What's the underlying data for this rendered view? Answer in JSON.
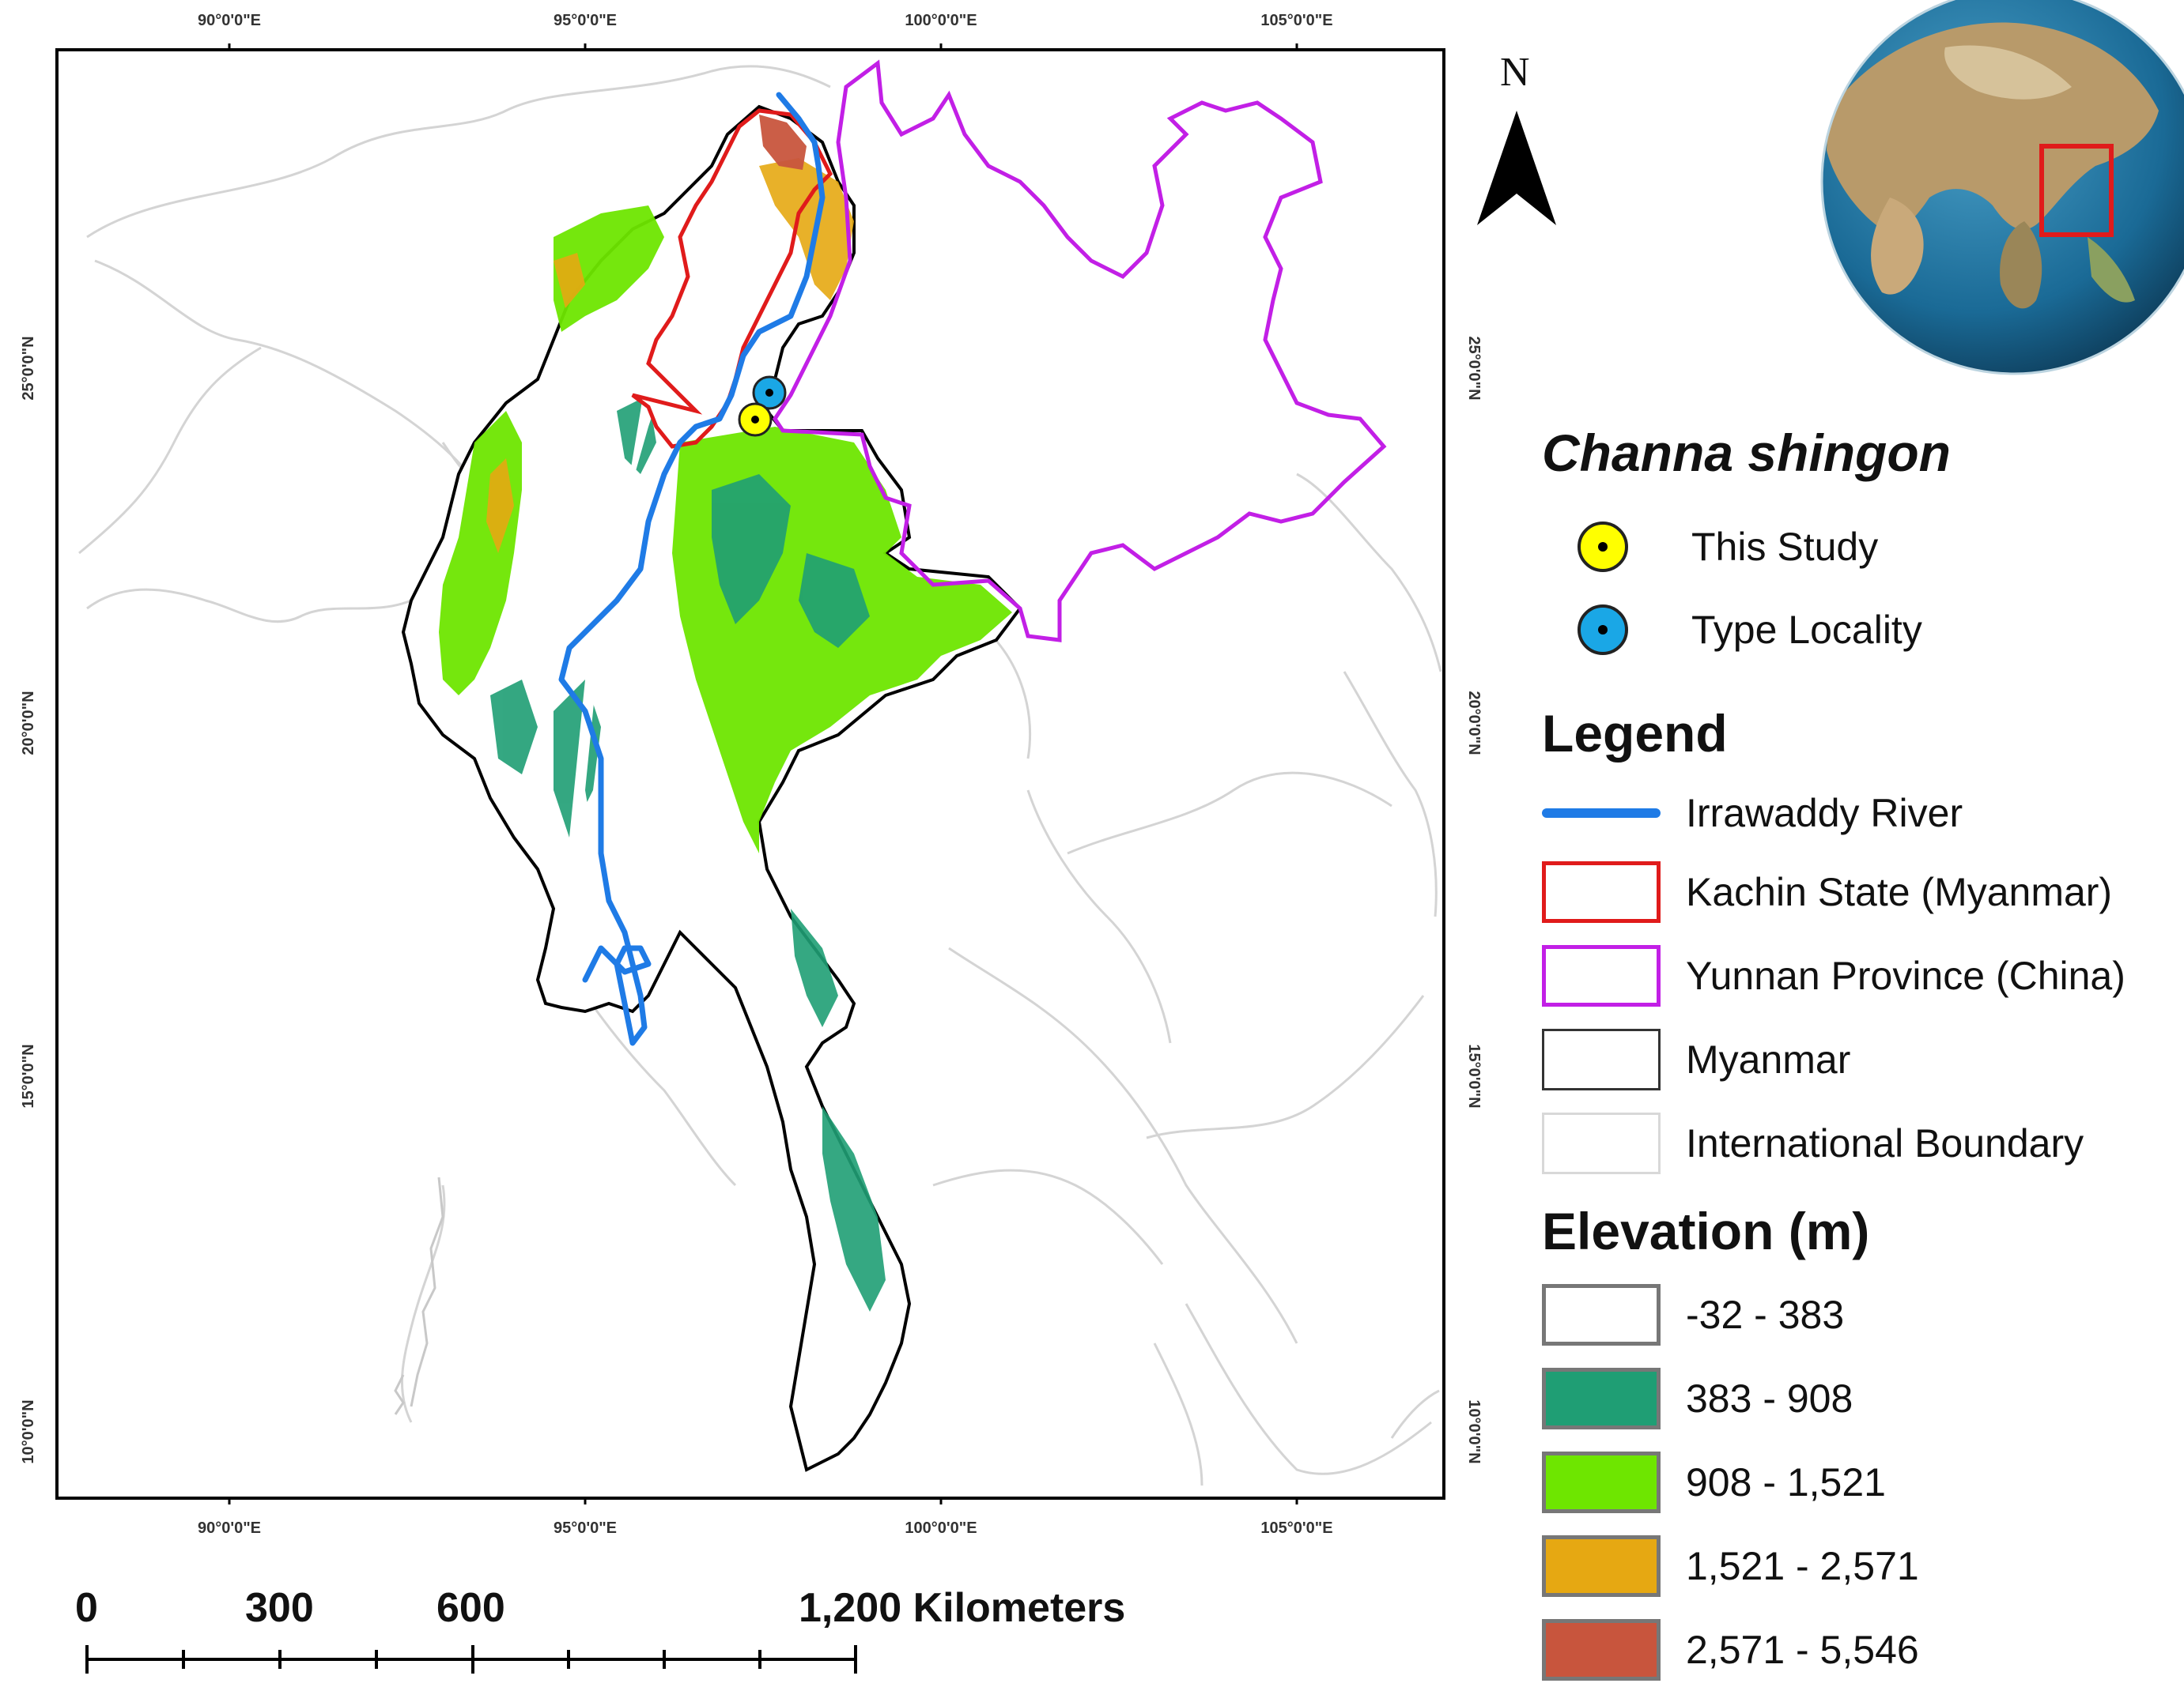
{
  "map": {
    "top_axis_labels": [
      "90°0'0\"E",
      "95°0'0\"E",
      "100°0'0\"E",
      "105°0'0\"E"
    ],
    "bottom_axis_labels": [
      "90°0'0\"E",
      "95°0'0\"E",
      "100°0'0\"E",
      "105°0'0\"E"
    ],
    "left_axis_labels": [
      "25°0'0\"N",
      "20°0'0\"N",
      "15°0'0\"N",
      "10°0'0\"N"
    ],
    "right_axis_labels": [
      "25°0'0\"N",
      "20°0'0\"N",
      "15°0'0\"N",
      "10°0'0\"N"
    ],
    "north_label": "N"
  },
  "species": {
    "title": "Channa shingon",
    "markers": [
      {
        "label": "This Study",
        "color": "#ffff00"
      },
      {
        "label": "Type Locality",
        "color": "#1aa7e6"
      }
    ]
  },
  "legend": {
    "title": "Legend",
    "items": [
      {
        "label": "Irrawaddy River",
        "kind": "line",
        "color": "#1f7be6"
      },
      {
        "label": "Kachin State (Myanmar)",
        "kind": "box",
        "color": "#e01b1b"
      },
      {
        "label": "Yunnan Province (China)",
        "kind": "box",
        "color": "#c21fe6"
      },
      {
        "label": "Myanmar",
        "kind": "box",
        "color": "#333333"
      },
      {
        "label": "International Boundary",
        "kind": "box",
        "color": "#d8d8d8"
      }
    ]
  },
  "elevation": {
    "title": "Elevation (m)",
    "classes": [
      {
        "label": "-32 - 383",
        "color": "#ffffff"
      },
      {
        "label": "383 - 908",
        "color": "#1f9e74"
      },
      {
        "label": "908 - 1,521",
        "color": "#6ee600"
      },
      {
        "label": "1,521 - 2,571",
        "color": "#e6a812"
      },
      {
        "label": "2,571 - 5,546",
        "color": "#c8553d"
      }
    ]
  },
  "scale_bar": {
    "labels": [
      "0",
      "300",
      "600",
      "1,200 Kilometers"
    ]
  }
}
